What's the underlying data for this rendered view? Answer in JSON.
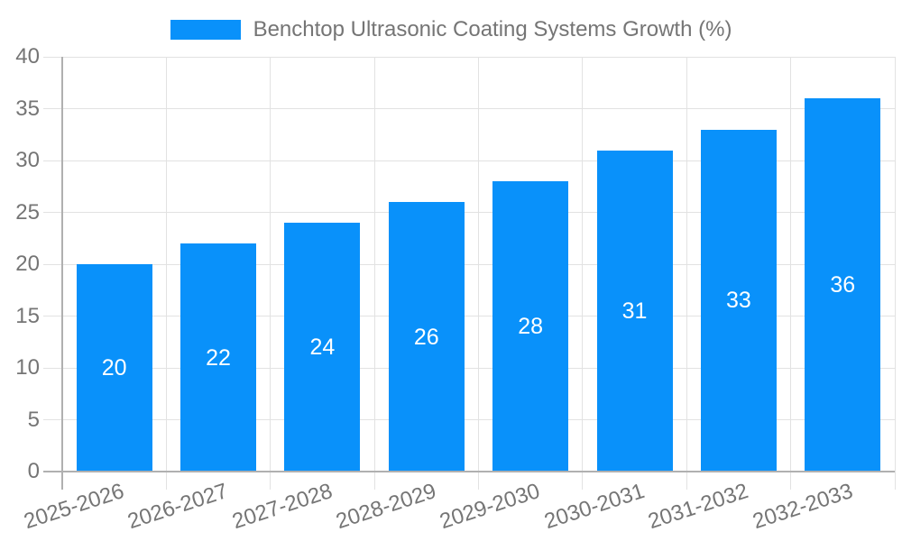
{
  "legend": {
    "label": "Benchtop Ultrasonic Coating Systems Growth (%)"
  },
  "chart_data": {
    "type": "bar",
    "title": "Benchtop Ultrasonic Coating Systems Growth (%)",
    "legend_position": "top-center",
    "categories": [
      "2025-2026",
      "2026-2027",
      "2027-2028",
      "2028-2029",
      "2029-2030",
      "2030-2031",
      "2031-2032",
      "2032-2033"
    ],
    "values": [
      20,
      22,
      24,
      26,
      28,
      31,
      33,
      36
    ],
    "bar_value_labels": [
      "20",
      "22",
      "24",
      "26",
      "28",
      "31",
      "33",
      "36"
    ],
    "xlabel": "",
    "ylabel": "",
    "ylim": [
      0,
      40
    ],
    "yticks": [
      0,
      5,
      10,
      15,
      20,
      25,
      30,
      35,
      40
    ],
    "grid": true,
    "x_label_rotation_deg": -18,
    "colors": {
      "bar": "#0991fa",
      "bar_label": "#ffffff",
      "axis_text": "#757575",
      "grid_line": "#e2e2e2",
      "axis_line": "#b0b0b0",
      "background": "#ffffff"
    }
  }
}
